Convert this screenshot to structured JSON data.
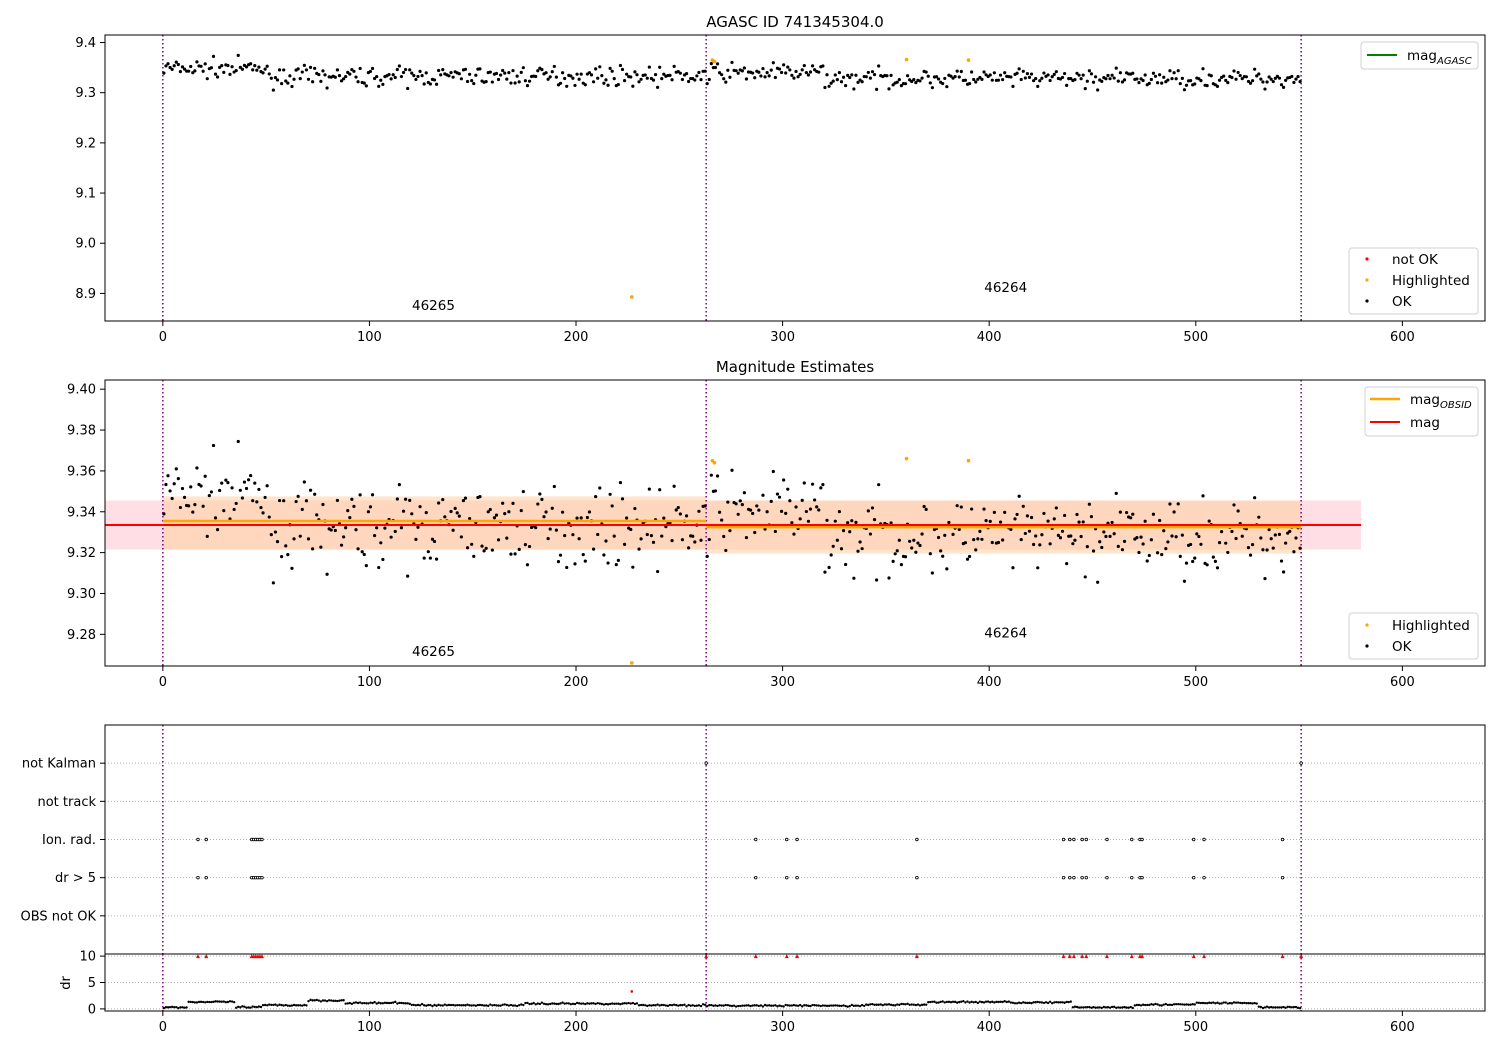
{
  "figure": {
    "background": "#ffffff",
    "colors": {
      "ok": "#000000",
      "highlighted": "#ffa500",
      "not_ok": "#ff0000",
      "mag_agasc": "#008000",
      "mag_obsid": "#ffa500",
      "mag": "#ff0000",
      "obs_boundary": "#800080",
      "mag_band": "#ffc0cb",
      "obsid_band": "#ffd0a0"
    }
  },
  "chart_data": [
    {
      "type": "scatter",
      "title": "AGASC ID 741345304.0",
      "xlim": [
        -28,
        640
      ],
      "ylim": [
        8.845,
        9.415
      ],
      "xticks": [
        0,
        100,
        200,
        300,
        400,
        500,
        600
      ],
      "yticks": [
        8.9,
        9.0,
        9.1,
        9.2,
        9.3,
        9.4
      ],
      "ytick_labels": [
        "8.9",
        "9.0",
        "9.1",
        "9.2",
        "9.3",
        "9.4"
      ],
      "obs_boundaries": [
        0,
        263,
        551
      ],
      "obs_labels": [
        {
          "text": "46265",
          "x": 131,
          "y": 8.867
        },
        {
          "text": "46264",
          "x": 408,
          "y": 8.903
        }
      ],
      "series": [
        {
          "name": "OK",
          "color": "#000000",
          "n": 551,
          "x_range": [
            0,
            551
          ],
          "mean_segments": [
            {
              "x": [
                0,
                50
              ],
              "mean": 9.348
            },
            {
              "x": [
                50,
                130
              ],
              "mean": 9.332
            },
            {
              "x": [
                130,
                265
              ],
              "mean": 9.333
            },
            {
              "x": [
                265,
                320
              ],
              "mean": 9.34
            },
            {
              "x": [
                320,
                551
              ],
              "mean": 9.328
            }
          ],
          "scatter": 0.009
        },
        {
          "name": "Highlighted",
          "color": "#ffa500",
          "x": [
            227,
            266,
            267,
            360,
            390
          ],
          "y": [
            8.893,
            9.365,
            9.362,
            9.366,
            9.365
          ]
        },
        {
          "name": "not OK",
          "color": "#ff0000",
          "x": [],
          "y": []
        }
      ],
      "legends": [
        {
          "location": "upper right",
          "entries": [
            {
              "label": "mag",
              "subscript": "AGASC",
              "color": "#008000",
              "marker": "line"
            }
          ]
        },
        {
          "location": "lower right",
          "entries": [
            {
              "label": "not OK",
              "color": "#ff0000",
              "marker": "dot"
            },
            {
              "label": "Highlighted",
              "color": "#ffa500",
              "marker": "dot"
            },
            {
              "label": "OK",
              "color": "#000000",
              "marker": "dot"
            }
          ]
        }
      ]
    },
    {
      "type": "scatter",
      "title": "Magnitude Estimates",
      "xlim": [
        -28,
        640
      ],
      "ylim": [
        9.2645,
        9.4045
      ],
      "xticks": [
        0,
        100,
        200,
        300,
        400,
        500,
        600
      ],
      "yticks": [
        9.28,
        9.3,
        9.32,
        9.34,
        9.36,
        9.38,
        9.4
      ],
      "ytick_labels": [
        "9.28",
        "9.30",
        "9.32",
        "9.34",
        "9.36",
        "9.38",
        "9.40"
      ],
      "obs_boundaries": [
        0,
        263,
        551
      ],
      "obs_labels": [
        {
          "text": "46265",
          "x": 131,
          "y": 9.2695
        },
        {
          "text": "46264",
          "x": 408,
          "y": 9.2785
        }
      ],
      "mag": {
        "value": 9.3335,
        "band": [
          9.3215,
          9.3455
        ],
        "x": [
          -28,
          580
        ]
      },
      "mag_obsid": [
        {
          "x": [
            0,
            263
          ],
          "value": 9.3355,
          "band": [
            9.3215,
            9.3475
          ]
        },
        {
          "x": [
            263,
            551
          ],
          "value": 9.3325,
          "band": [
            9.3195,
            9.3455
          ]
        }
      ],
      "series": [
        {
          "name": "OK",
          "color": "#000000",
          "n": 551,
          "x_range": [
            0,
            551
          ]
        },
        {
          "name": "Highlighted",
          "color": "#ffa500",
          "x": [
            227,
            266,
            267,
            360,
            390
          ],
          "y": [
            9.266,
            9.365,
            9.364,
            9.366,
            9.365
          ]
        }
      ],
      "legends": [
        {
          "location": "upper right",
          "entries": [
            {
              "label": "mag",
              "subscript": "OBSID",
              "color": "#ffa500",
              "marker": "line"
            },
            {
              "label": "mag",
              "subscript": "",
              "color": "#ff0000",
              "marker": "line"
            }
          ]
        },
        {
          "location": "lower right",
          "entries": [
            {
              "label": "Highlighted",
              "color": "#ffa500",
              "marker": "dot"
            },
            {
              "label": "OK",
              "color": "#000000",
              "marker": "dot"
            }
          ]
        }
      ]
    },
    {
      "type": "scatter",
      "title": "",
      "xlim": [
        -28,
        640
      ],
      "categories": [
        "not Kalman",
        "not track",
        "Ion. rad.",
        "dr > 5",
        "OBS not OK"
      ],
      "obs_boundaries": [
        0,
        263,
        551
      ],
      "flags": {
        "not Kalman": [
          263,
          551
        ],
        "not track": [],
        "Ion. rad.": [
          17,
          21,
          43,
          44,
          45,
          46,
          47,
          48,
          287,
          302,
          307,
          365,
          436,
          439,
          441,
          445,
          447,
          457,
          469,
          473,
          474,
          499,
          504,
          542
        ],
        "dr > 5": [
          17,
          21,
          43,
          44,
          45,
          46,
          47,
          48,
          287,
          302,
          307,
          365,
          436,
          439,
          441,
          445,
          447,
          457,
          469,
          473,
          474,
          499,
          504,
          542
        ],
        "OBS not OK": []
      }
    },
    {
      "type": "scatter",
      "title": "",
      "xlim": [
        -28,
        640
      ],
      "ylim": [
        -0.4,
        10.4
      ],
      "ylabel": "dr",
      "yticks": [
        0,
        5,
        10
      ],
      "ytick_labels": [
        "0",
        "5",
        "10"
      ],
      "xticks": [
        0,
        100,
        200,
        300,
        400,
        500,
        600
      ],
      "obs_boundaries": [
        0,
        263,
        551
      ],
      "capped_points_x": [
        17,
        21,
        43,
        44,
        45,
        46,
        47,
        48,
        263,
        287,
        302,
        307,
        365,
        436,
        439,
        441,
        445,
        447,
        457,
        469,
        473,
        474,
        499,
        504,
        542,
        551
      ],
      "capped_value": 10,
      "red_points": [
        {
          "x": 227,
          "y": 3.3
        }
      ],
      "ok_profile": [
        {
          "x": [
            0,
            12
          ],
          "level": 0.3
        },
        {
          "x": [
            12,
            35
          ],
          "level": 1.3
        },
        {
          "x": [
            35,
            48
          ],
          "level": 0.3
        },
        {
          "x": [
            48,
            70
          ],
          "level": 0.7
        },
        {
          "x": [
            70,
            88
          ],
          "level": 1.6
        },
        {
          "x": [
            88,
            120
          ],
          "level": 1.1
        },
        {
          "x": [
            120,
            175
          ],
          "level": 0.7
        },
        {
          "x": [
            175,
            230
          ],
          "level": 1.0
        },
        {
          "x": [
            230,
            263
          ],
          "level": 0.7
        },
        {
          "x": [
            263,
            340
          ],
          "level": 0.6
        },
        {
          "x": [
            340,
            370
          ],
          "level": 0.8
        },
        {
          "x": [
            370,
            410
          ],
          "level": 1.3
        },
        {
          "x": [
            410,
            440
          ],
          "level": 1.2
        },
        {
          "x": [
            440,
            470
          ],
          "level": 0.3
        },
        {
          "x": [
            470,
            500
          ],
          "level": 0.8
        },
        {
          "x": [
            500,
            530
          ],
          "level": 1.1
        },
        {
          "x": [
            530,
            551
          ],
          "level": 0.3
        }
      ]
    }
  ]
}
